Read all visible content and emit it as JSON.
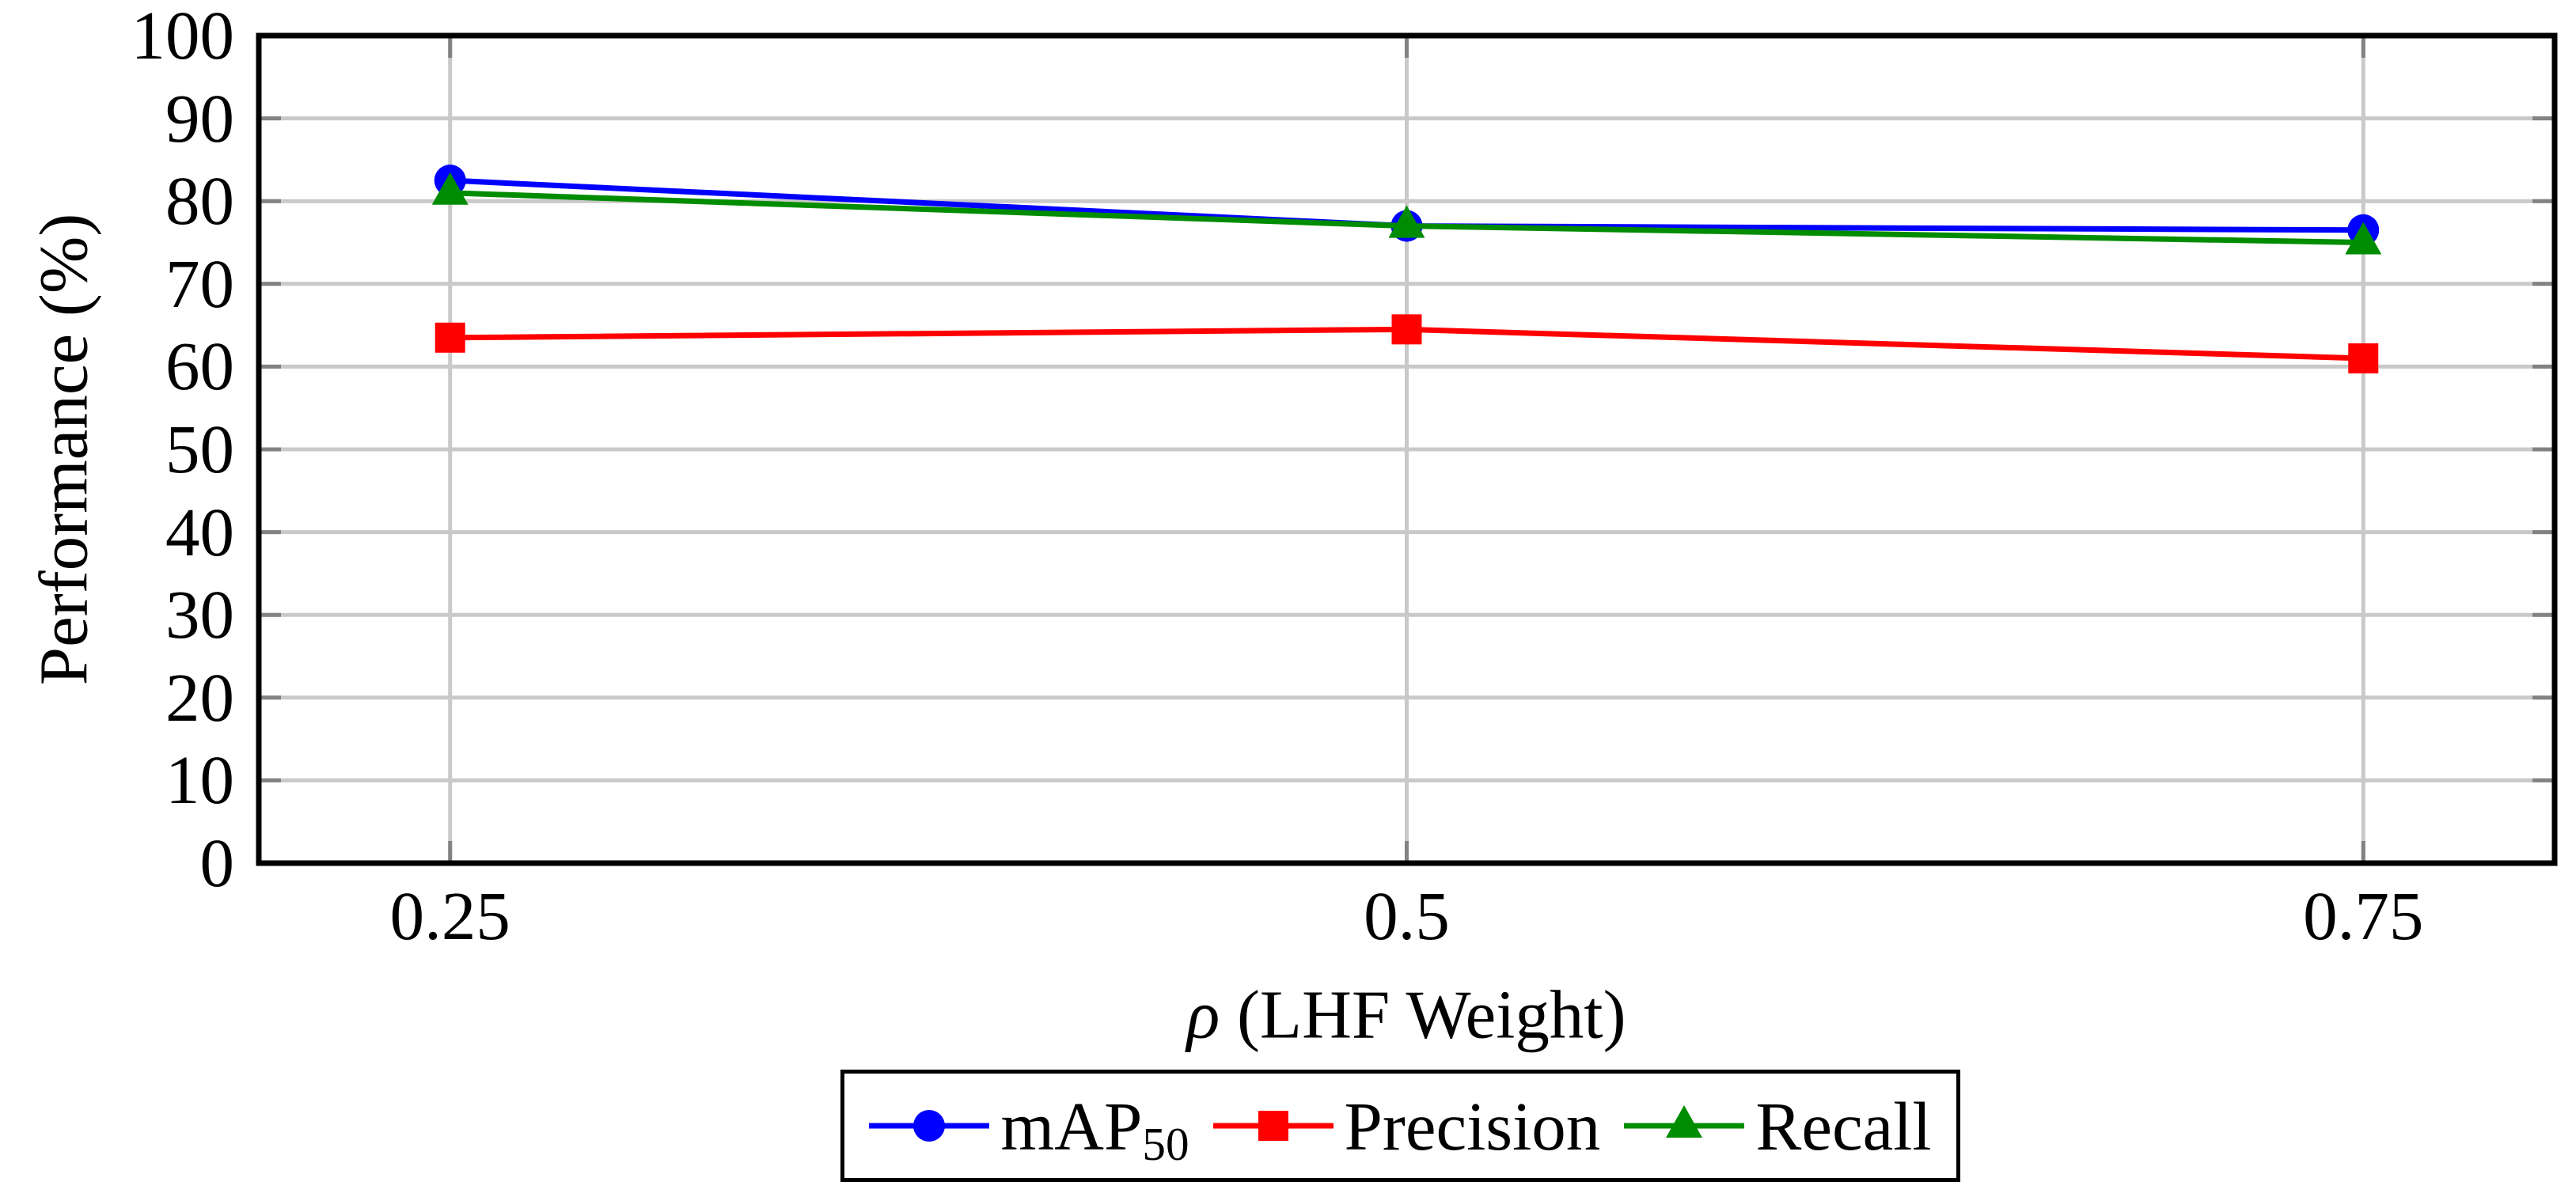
{
  "figure": {
    "background": "#ffffff"
  },
  "chart_data": {
    "type": "line",
    "title": "",
    "ylabel": "Performance (%)",
    "xlabel_symbol": "ρ",
    "xlabel_rest": " (LHF Weight)",
    "x": [
      0.25,
      0.5,
      0.75
    ],
    "x_tick_labels": [
      "0.25",
      "0.5",
      "0.75"
    ],
    "y_ticks": [
      0,
      10,
      20,
      30,
      40,
      50,
      60,
      70,
      80,
      90,
      100
    ],
    "y_tick_labels": [
      "0",
      "10",
      "20",
      "30",
      "40",
      "50",
      "60",
      "70",
      "80",
      "90",
      "100"
    ],
    "xlim": [
      0.2,
      0.8
    ],
    "ylim": [
      0,
      100
    ],
    "grid": true,
    "legend_position": "below-chart-boxed",
    "series": [
      {
        "name": "mAP",
        "name_sub": "50",
        "marker": "circle",
        "color": "#0000ff",
        "values": [
          82.5,
          77.0,
          76.5
        ]
      },
      {
        "name": "Precision",
        "name_sub": "",
        "marker": "square",
        "color": "#ff0000",
        "values": [
          63.5,
          64.5,
          61.0
        ]
      },
      {
        "name": "Recall",
        "name_sub": "",
        "marker": "triangle",
        "color": "#008c00",
        "values": [
          81.0,
          77.0,
          75.0
        ]
      }
    ],
    "colors": {
      "frame": "#000000",
      "grid": "#c9c9c9",
      "tick": "#828282",
      "text": "#000000"
    }
  }
}
